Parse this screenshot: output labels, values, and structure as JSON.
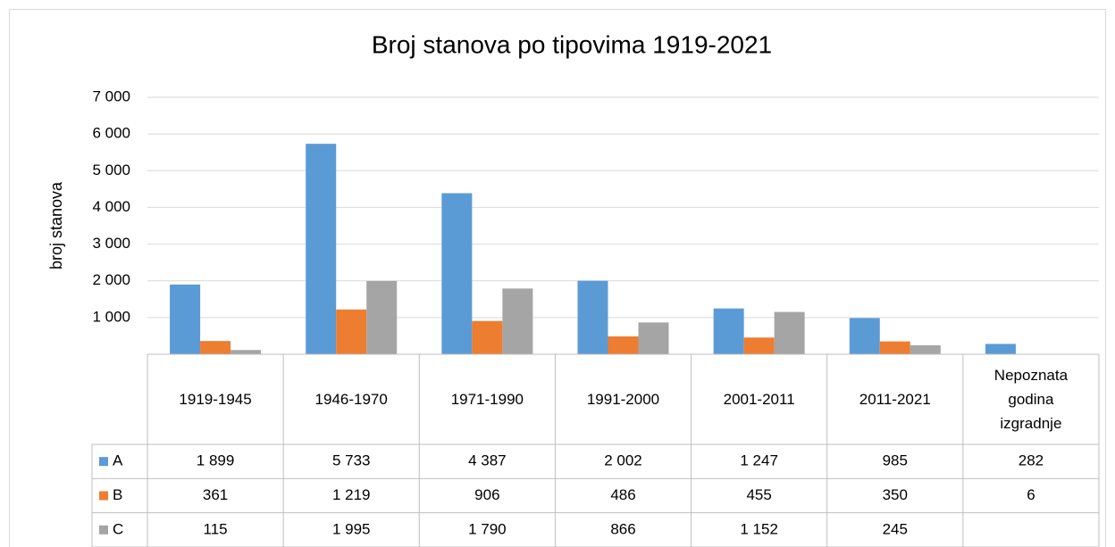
{
  "chart_data": {
    "type": "bar",
    "title": "Broj stanova po tipovima 1919-2021",
    "y_label": "broj stanova",
    "categories": [
      "1919-1945",
      "1946-1970",
      "1971-1990",
      "1991-2000",
      "2001-2011",
      "2011-2021",
      "Nepoznata godina izgradnje"
    ],
    "series": [
      {
        "name": "A",
        "color": "#5b9bd5",
        "values": [
          1899,
          5733,
          4387,
          2002,
          1247,
          985,
          282
        ],
        "value_labels": [
          "1 899",
          "5 733",
          "4 387",
          "2 002",
          "1 247",
          "985",
          "282"
        ]
      },
      {
        "name": "B",
        "color": "#ed7d31",
        "values": [
          361,
          1219,
          906,
          486,
          455,
          350,
          6
        ],
        "value_labels": [
          "361",
          "1 219",
          "906",
          "486",
          "455",
          "350",
          "6"
        ]
      },
      {
        "name": "C",
        "color": "#a5a5a5",
        "values": [
          115,
          1995,
          1790,
          866,
          1152,
          245,
          null
        ],
        "value_labels": [
          "115",
          "1 995",
          "1 790",
          "866",
          "1 152",
          "245",
          null
        ]
      }
    ],
    "ylim": [
      0,
      7000
    ],
    "yticks": [
      {
        "value": 1000,
        "label": "1 000"
      },
      {
        "value": 2000,
        "label": "2 000"
      },
      {
        "value": 3000,
        "label": "3 000"
      },
      {
        "value": 4000,
        "label": "4 000"
      },
      {
        "value": 5000,
        "label": "5 000"
      },
      {
        "value": 6000,
        "label": "6 000"
      },
      {
        "value": 7000,
        "label": "7 000"
      }
    ],
    "grid": true
  }
}
